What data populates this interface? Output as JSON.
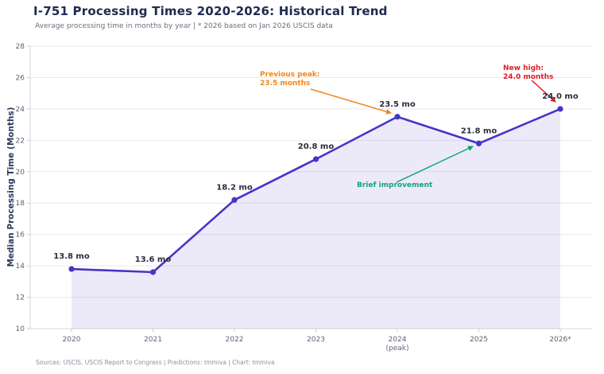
{
  "chart_data": {
    "type": "line",
    "title": "I-751 Processing Times 2020-2026: Historical Trend",
    "subtitle": "Average processing time in months by year | * 2026 based on Jan 2026 USCIS data",
    "ylabel": "Median Processing Time (Months)",
    "xlabel": "",
    "categories": [
      "2020",
      "2021",
      "2022",
      "2023",
      "2024",
      "2025",
      "2026*"
    ],
    "x_sublabels": {
      "4": "(peak)"
    },
    "values": [
      13.8,
      13.6,
      18.2,
      20.8,
      23.5,
      21.8,
      24.0
    ],
    "point_labels": [
      "13.8 mo",
      "13.6 mo",
      "18.2 mo",
      "20.8 mo",
      "23.5 mo",
      "21.8 mo",
      "24.0 mo"
    ],
    "ylim": [
      10,
      28
    ],
    "ytick_step": 2,
    "grid": true,
    "legend": "none",
    "line_color": "#4634c9",
    "point_color": "#4634c9",
    "fill_color": "rgba(70,52,201,0.10)",
    "annotations": [
      {
        "id": "previous-peak",
        "text_lines": [
          "Previous peak:",
          "23.5 months"
        ],
        "color": "#f0861d",
        "target_category": "2024"
      },
      {
        "id": "new-high",
        "text_lines": [
          "New high:",
          "24.0 months"
        ],
        "color": "#dc1f28",
        "target_category": "2026*"
      },
      {
        "id": "brief-improvement",
        "text_lines": [
          "Brief improvement"
        ],
        "color": "#10a47a",
        "target_category": "2025"
      }
    ]
  },
  "footer": {
    "text": "Sources: USCIS, USCIS Report to Congress  |  Predictions: Immiva  |  Chart: Immiva"
  }
}
